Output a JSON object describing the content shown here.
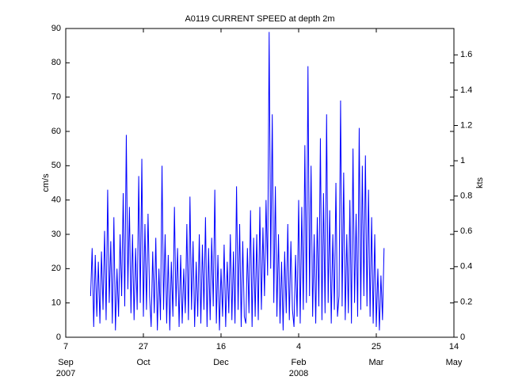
{
  "chart_data": {
    "type": "line",
    "title": "A0119 CURRENT SPEED at depth 2m",
    "ylabel": "cm/s",
    "y2label": "kts",
    "color": "#0000ff",
    "xlim": [
      "2007-09-07",
      "2008-05-14"
    ],
    "xticks": [
      {
        "value": "2007-09-07",
        "label": "7",
        "month": "Sep",
        "year": "2007"
      },
      {
        "value": "2007-10-27",
        "label": "27",
        "month": "Oct"
      },
      {
        "value": "2007-12-16",
        "label": "16",
        "month": "Dec"
      },
      {
        "value": "2008-02-04",
        "label": "4",
        "month": "Feb",
        "year": "2008"
      },
      {
        "value": "2008-03-25",
        "label": "25",
        "month": "Mar"
      },
      {
        "value": "2008-05-14",
        "label": "14",
        "month": "May"
      }
    ],
    "ylim": [
      0,
      90
    ],
    "yticks": [
      0,
      10,
      20,
      30,
      40,
      50,
      60,
      70,
      80,
      90
    ],
    "y2lim": [
      0,
      1.7495
    ],
    "y2ticks": [
      0,
      0.2,
      0.4,
      0.6,
      0.8,
      1,
      1.2,
      1.4,
      1.6
    ],
    "x": [
      "2007-09-23",
      "2007-09-24",
      "2007-09-25",
      "2007-09-26",
      "2007-09-27",
      "2007-09-28",
      "2007-09-29",
      "2007-09-30",
      "2007-10-01",
      "2007-10-02",
      "2007-10-03",
      "2007-10-04",
      "2007-10-05",
      "2007-10-06",
      "2007-10-07",
      "2007-10-08",
      "2007-10-09",
      "2007-10-10",
      "2007-10-11",
      "2007-10-12",
      "2007-10-13",
      "2007-10-14",
      "2007-10-15",
      "2007-10-16",
      "2007-10-17",
      "2007-10-18",
      "2007-10-19",
      "2007-10-20",
      "2007-10-21",
      "2007-10-22",
      "2007-10-23",
      "2007-10-24",
      "2007-10-25",
      "2007-10-26",
      "2007-10-27",
      "2007-10-28",
      "2007-10-29",
      "2007-10-30",
      "2007-10-31",
      "2007-11-01",
      "2007-11-02",
      "2007-11-03",
      "2007-11-04",
      "2007-11-05",
      "2007-11-06",
      "2007-11-07",
      "2007-11-08",
      "2007-11-09",
      "2007-11-10",
      "2007-11-11",
      "2007-11-12",
      "2007-11-13",
      "2007-11-14",
      "2007-11-15",
      "2007-11-16",
      "2007-11-17",
      "2007-11-18",
      "2007-11-19",
      "2007-11-20",
      "2007-11-21",
      "2007-11-22",
      "2007-11-23",
      "2007-11-24",
      "2007-11-25",
      "2007-11-26",
      "2007-11-27",
      "2007-11-28",
      "2007-11-29",
      "2007-11-30",
      "2007-12-01",
      "2007-12-02",
      "2007-12-03",
      "2007-12-04",
      "2007-12-05",
      "2007-12-06",
      "2007-12-07",
      "2007-12-08",
      "2007-12-09",
      "2007-12-10",
      "2007-12-11",
      "2007-12-12",
      "2007-12-13",
      "2007-12-14",
      "2007-12-15",
      "2007-12-16",
      "2007-12-17",
      "2007-12-18",
      "2007-12-19",
      "2007-12-20",
      "2007-12-21",
      "2007-12-22",
      "2007-12-23",
      "2007-12-24",
      "2007-12-25",
      "2007-12-26",
      "2007-12-27",
      "2007-12-28",
      "2007-12-29",
      "2007-12-30",
      "2007-12-31",
      "2008-01-01",
      "2008-01-02",
      "2008-01-03",
      "2008-01-04",
      "2008-01-05",
      "2008-01-06",
      "2008-01-07",
      "2008-01-08",
      "2008-01-09",
      "2008-01-10",
      "2008-01-11",
      "2008-01-12",
      "2008-01-13",
      "2008-01-14",
      "2008-01-15",
      "2008-01-16",
      "2008-01-17",
      "2008-01-18",
      "2008-01-19",
      "2008-01-20",
      "2008-01-21",
      "2008-01-22",
      "2008-01-23",
      "2008-01-24",
      "2008-01-25",
      "2008-01-26",
      "2008-01-27",
      "2008-01-28",
      "2008-01-29",
      "2008-01-30",
      "2008-01-31",
      "2008-02-01",
      "2008-02-02",
      "2008-02-03",
      "2008-02-04",
      "2008-02-05",
      "2008-02-06",
      "2008-02-07",
      "2008-02-08",
      "2008-02-09",
      "2008-02-10",
      "2008-02-11",
      "2008-02-12",
      "2008-02-13",
      "2008-02-14",
      "2008-02-15",
      "2008-02-16",
      "2008-02-17",
      "2008-02-18",
      "2008-02-19",
      "2008-02-20",
      "2008-02-21",
      "2008-02-22",
      "2008-02-23",
      "2008-02-24",
      "2008-02-25",
      "2008-02-26",
      "2008-02-27",
      "2008-02-28",
      "2008-02-29",
      "2008-03-01",
      "2008-03-02",
      "2008-03-03",
      "2008-03-04",
      "2008-03-05",
      "2008-03-06",
      "2008-03-07",
      "2008-03-08",
      "2008-03-09",
      "2008-03-10",
      "2008-03-11",
      "2008-03-12",
      "2008-03-13",
      "2008-03-14",
      "2008-03-15",
      "2008-03-16",
      "2008-03-17",
      "2008-03-18",
      "2008-03-19",
      "2008-03-20",
      "2008-03-21",
      "2008-03-22",
      "2008-03-23",
      "2008-03-24",
      "2008-03-25",
      "2008-03-26",
      "2008-03-27",
      "2008-03-28",
      "2008-03-29",
      "2008-03-30"
    ],
    "values": [
      12,
      26,
      3,
      24,
      6,
      22,
      4,
      25,
      8,
      31,
      5,
      43,
      10,
      28,
      4,
      35,
      2,
      20,
      6,
      30,
      12,
      42,
      9,
      59,
      14,
      38,
      7,
      30,
      5,
      26,
      8,
      47,
      10,
      52,
      6,
      33,
      8,
      36,
      12,
      3,
      25,
      7,
      29,
      2,
      20,
      5,
      50,
      8,
      30,
      4,
      24,
      2,
      22,
      6,
      38,
      9,
      26,
      3,
      24,
      4,
      20,
      7,
      33,
      5,
      41,
      8,
      28,
      3,
      22,
      6,
      30,
      4,
      27,
      8,
      35,
      3,
      26,
      5,
      29,
      9,
      43,
      4,
      24,
      2,
      20,
      6,
      27,
      3,
      22,
      7,
      30,
      5,
      25,
      4,
      44,
      8,
      33,
      3,
      28,
      6,
      4,
      26,
      7,
      37,
      3,
      29,
      6,
      30,
      5,
      38,
      8,
      32,
      12,
      40,
      18,
      89,
      20,
      65,
      10,
      44,
      6,
      30,
      4,
      22,
      2,
      25,
      7,
      33,
      5,
      28,
      8,
      3,
      24,
      6,
      40,
      4,
      38,
      8,
      56,
      10,
      79,
      12,
      50,
      6,
      30,
      4,
      35,
      9,
      58,
      5,
      42,
      7,
      65,
      10,
      37,
      4,
      30,
      8,
      45,
      6,
      12,
      69,
      9,
      48,
      5,
      30,
      7,
      40,
      4,
      55,
      10,
      36,
      6,
      61,
      8,
      50,
      12,
      53,
      9,
      43,
      6,
      35,
      4,
      30,
      3,
      20,
      2,
      18,
      5,
      26
    ]
  }
}
